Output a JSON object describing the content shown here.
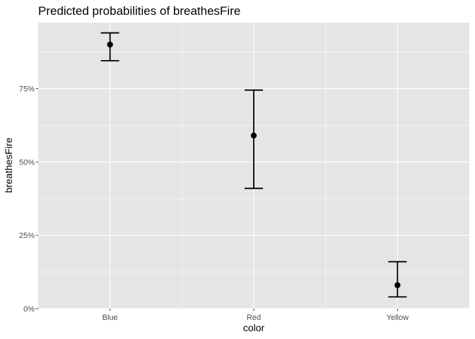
{
  "chart_data": {
    "type": "scatter",
    "title": "Predicted probabilities of breathesFire",
    "xlabel": "color",
    "ylabel": "breathesFire",
    "categories": [
      "Blue",
      "Red",
      "Yellow"
    ],
    "series": [
      {
        "values": [
          0.9,
          0.59,
          0.08
        ],
        "lower": [
          0.845,
          0.41,
          0.04
        ],
        "upper": [
          0.94,
          0.745,
          0.16
        ]
      }
    ],
    "yticks": [
      {
        "value": 0,
        "label": "0%"
      },
      {
        "value": 0.25,
        "label": "25%"
      },
      {
        "value": 0.5,
        "label": "50%"
      },
      {
        "value": 0.75,
        "label": "75%"
      }
    ],
    "ylim": [
      0,
      0.975
    ],
    "grid": true,
    "colors": {
      "panel": "#e5e5e5",
      "grid": "#ffffff",
      "marks": "#000000",
      "tick_text": "#4d4d4d"
    }
  }
}
